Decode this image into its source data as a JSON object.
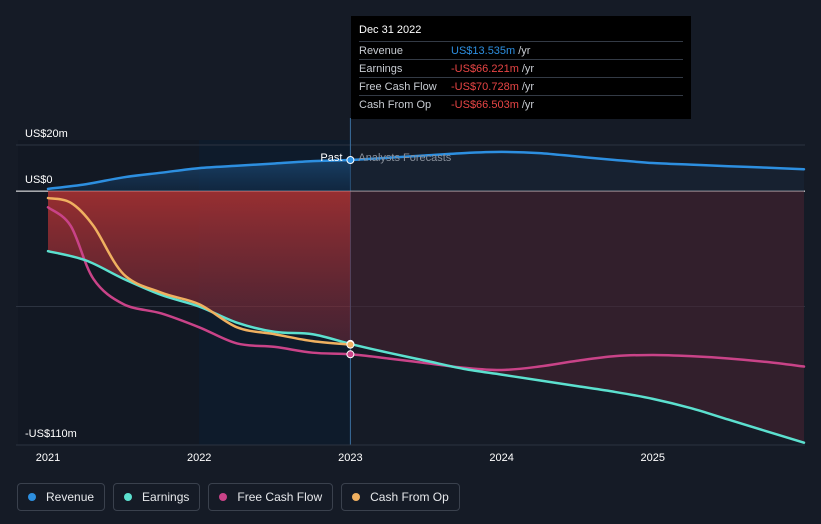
{
  "chart_data": {
    "type": "line",
    "title": "",
    "ylabel": "",
    "xlabel": "",
    "ylim": [
      -110,
      20
    ],
    "xlim": [
      2021,
      2026
    ],
    "y_tick_labels": [
      {
        "value": 20,
        "label": "US$20m"
      },
      {
        "value": 0,
        "label": "US$0"
      },
      {
        "value": -110,
        "label": "-US$110m"
      }
    ],
    "x_ticks": [
      2021,
      2022,
      2023,
      2024,
      2025
    ],
    "x_tick_labels": [
      "2021",
      "2022",
      "2023",
      "2024",
      "2025"
    ],
    "divider_x": 2023,
    "past_label": "Past",
    "forecast_label": "Analysts Forecasts",
    "series": [
      {
        "name": "Revenue",
        "color": "#2d8fe0",
        "points": [
          [
            2021,
            1
          ],
          [
            2021.25,
            3
          ],
          [
            2021.5,
            6
          ],
          [
            2021.75,
            8
          ],
          [
            2022,
            10
          ],
          [
            2022.25,
            11
          ],
          [
            2022.5,
            12
          ],
          [
            2022.75,
            13
          ],
          [
            2023,
            13.5
          ],
          [
            2023.25,
            14.5
          ],
          [
            2023.5,
            15.5
          ],
          [
            2023.75,
            16.5
          ],
          [
            2024,
            17
          ],
          [
            2024.25,
            16.5
          ],
          [
            2024.5,
            15
          ],
          [
            2024.75,
            13.5
          ],
          [
            2025,
            12.2
          ],
          [
            2025.25,
            11.5
          ],
          [
            2025.5,
            10.8
          ],
          [
            2025.75,
            10.2
          ],
          [
            2026,
            9.5
          ]
        ]
      },
      {
        "name": "Earnings",
        "color": "#5ce0cf",
        "points": [
          [
            2021,
            -26
          ],
          [
            2021.25,
            -30
          ],
          [
            2021.5,
            -38
          ],
          [
            2021.75,
            -45
          ],
          [
            2022,
            -50
          ],
          [
            2022.25,
            -57
          ],
          [
            2022.5,
            -61
          ],
          [
            2022.75,
            -62
          ],
          [
            2023,
            -66.2
          ],
          [
            2023.25,
            -70
          ],
          [
            2023.5,
            -73.5
          ],
          [
            2023.75,
            -77
          ],
          [
            2024,
            -79.5
          ],
          [
            2024.25,
            -82
          ],
          [
            2024.5,
            -84.5
          ],
          [
            2024.75,
            -87
          ],
          [
            2025,
            -90
          ],
          [
            2025.25,
            -94
          ],
          [
            2025.5,
            -99
          ],
          [
            2025.75,
            -104
          ],
          [
            2026,
            -109
          ]
        ]
      },
      {
        "name": "Free Cash Flow",
        "color": "#c94388",
        "points": [
          [
            2021,
            -7
          ],
          [
            2021.15,
            -15
          ],
          [
            2021.3,
            -38
          ],
          [
            2021.5,
            -49
          ],
          [
            2021.75,
            -53
          ],
          [
            2022,
            -59
          ],
          [
            2022.25,
            -66
          ],
          [
            2022.5,
            -67.5
          ],
          [
            2022.75,
            -70
          ],
          [
            2023,
            -70.7
          ],
          [
            2023.25,
            -72.5
          ],
          [
            2023.5,
            -74.5
          ],
          [
            2023.75,
            -76.5
          ],
          [
            2024,
            -77.5
          ],
          [
            2024.25,
            -76
          ],
          [
            2024.5,
            -73.5
          ],
          [
            2024.75,
            -71.5
          ],
          [
            2025,
            -71
          ],
          [
            2025.25,
            -71.5
          ],
          [
            2025.5,
            -72.5
          ],
          [
            2025.75,
            -74
          ],
          [
            2026,
            -76
          ]
        ]
      },
      {
        "name": "Cash From Op",
        "color": "#f0b060",
        "points": [
          [
            2021,
            -3
          ],
          [
            2021.15,
            -5
          ],
          [
            2021.3,
            -15
          ],
          [
            2021.5,
            -36
          ],
          [
            2021.75,
            -44
          ],
          [
            2022,
            -49
          ],
          [
            2022.25,
            -59
          ],
          [
            2022.5,
            -62
          ],
          [
            2022.75,
            -65
          ],
          [
            2023,
            -66.5
          ]
        ]
      }
    ]
  },
  "tooltip": {
    "date": "Dec 31 2022",
    "rows": [
      {
        "name": "Revenue",
        "value": "US$13.535m",
        "unit": "/yr",
        "color": "#2d8fe0"
      },
      {
        "name": "Earnings",
        "value": "-US$66.221m",
        "unit": "/yr",
        "color": "#e84545"
      },
      {
        "name": "Free Cash Flow",
        "value": "-US$70.728m",
        "unit": "/yr",
        "color": "#e84545"
      },
      {
        "name": "Cash From Op",
        "value": "-US$66.503m",
        "unit": "/yr",
        "color": "#e84545"
      }
    ]
  },
  "legend": [
    {
      "label": "Revenue",
      "color": "#2d8fe0"
    },
    {
      "label": "Earnings",
      "color": "#5ce0cf"
    },
    {
      "label": "Free Cash Flow",
      "color": "#c94388"
    },
    {
      "label": "Cash From Op",
      "color": "#f0b060"
    }
  ]
}
